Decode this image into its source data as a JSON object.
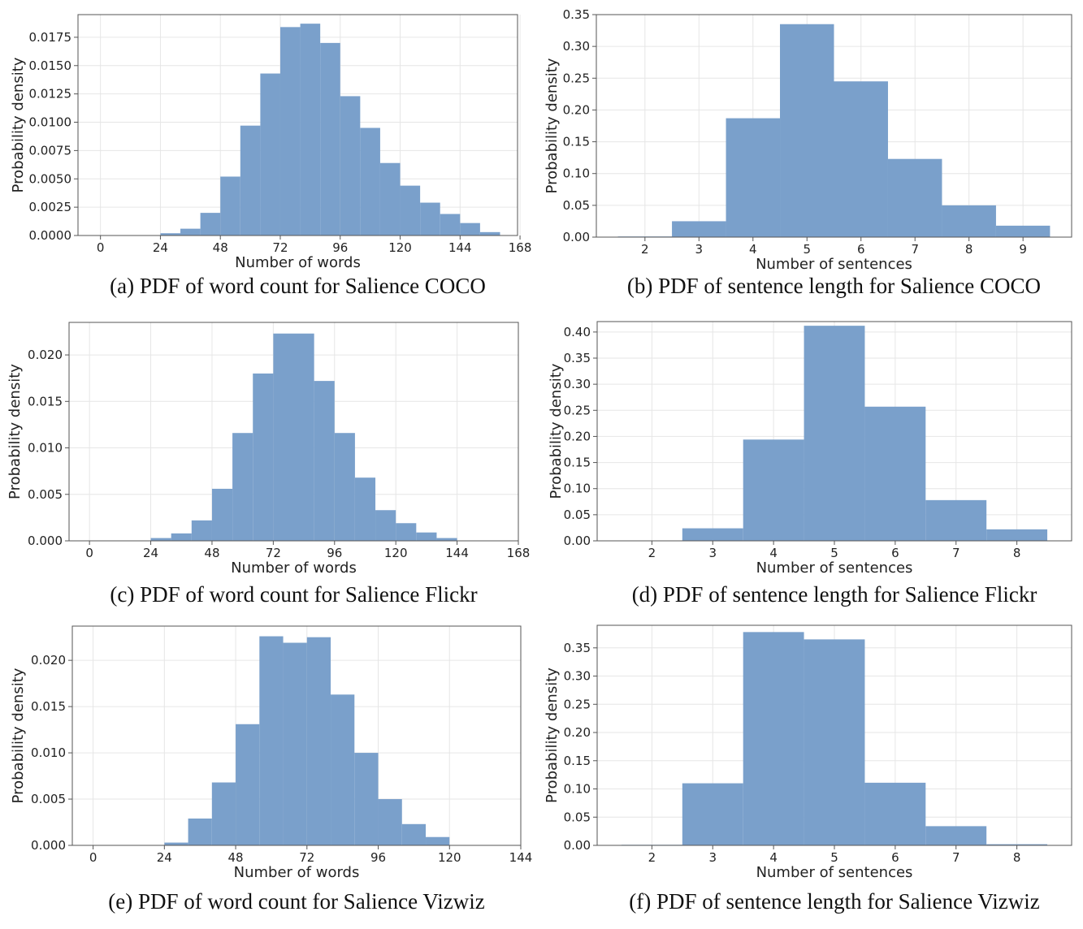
{
  "chart_data": [
    {
      "id": "a",
      "type": "bar",
      "caption": "(a) PDF of word count for Salience COCO",
      "xlabel": "Number of words",
      "ylabel": "Probability density",
      "xlim": [
        -9,
        167
      ],
      "ylim": [
        0,
        0.0195
      ],
      "xticks": [
        0,
        24,
        48,
        72,
        96,
        120,
        144,
        168
      ],
      "yticks": [
        0,
        0.0025,
        0.005,
        0.0075,
        0.01,
        0.0125,
        0.015,
        0.0175
      ],
      "ytick_labels": [
        "0.0000",
        "0.0025",
        "0.0050",
        "0.0075",
        "0.0100",
        "0.0125",
        "0.0150",
        "0.0175"
      ],
      "grid": true,
      "bin_edges": [
        24,
        32,
        40,
        48,
        56,
        64,
        72,
        80,
        88,
        96,
        104,
        112,
        120,
        128,
        136,
        144,
        152,
        160
      ],
      "values": [
        0.0002,
        0.0006,
        0.002,
        0.0052,
        0.0097,
        0.0143,
        0.0184,
        0.0187,
        0.017,
        0.0123,
        0.0095,
        0.0064,
        0.0044,
        0.0029,
        0.0019,
        0.0011,
        0.0003
      ]
    },
    {
      "id": "b",
      "type": "bar",
      "caption": "(b) PDF of sentence length for Salience COCO",
      "xlabel": "Number of sentences",
      "ylabel": "Probability density",
      "xlim": [
        1.1,
        9.9
      ],
      "ylim": [
        0,
        0.35
      ],
      "xticks": [
        2,
        3,
        4,
        5,
        6,
        7,
        8,
        9
      ],
      "yticks": [
        0,
        0.05,
        0.1,
        0.15,
        0.2,
        0.25,
        0.3,
        0.35
      ],
      "ytick_labels": [
        "0.00",
        "0.05",
        "0.10",
        "0.15",
        "0.20",
        "0.25",
        "0.30",
        "0.35"
      ],
      "grid": true,
      "bin_edges": [
        1.5,
        2.5,
        3.5,
        4.5,
        5.5,
        6.5,
        7.5,
        8.5,
        9.5
      ],
      "values": [
        0.001,
        0.025,
        0.187,
        0.335,
        0.245,
        0.123,
        0.05,
        0.018
      ]
    },
    {
      "id": "c",
      "type": "bar",
      "caption": "(c) PDF of word count for Salience Flickr",
      "xlabel": "Number of words",
      "ylabel": "Probability density",
      "xlim": [
        -8,
        168
      ],
      "ylim": [
        0,
        0.0235
      ],
      "xticks": [
        0,
        24,
        48,
        72,
        96,
        120,
        144,
        168
      ],
      "yticks": [
        0,
        0.005,
        0.01,
        0.015,
        0.02
      ],
      "ytick_labels": [
        "0.000",
        "0.005",
        "0.010",
        "0.015",
        "0.020"
      ],
      "grid": true,
      "bin_edges": [
        24,
        32,
        40,
        48,
        56,
        64,
        72,
        80,
        88,
        96,
        104,
        112,
        120,
        128,
        136,
        144
      ],
      "values": [
        0.0003,
        0.0008,
        0.0022,
        0.0056,
        0.0116,
        0.018,
        0.0223,
        0.0223,
        0.0172,
        0.0116,
        0.0068,
        0.0033,
        0.0019,
        0.0009,
        0.0003
      ]
    },
    {
      "id": "d",
      "type": "bar",
      "caption": "(d) PDF of sentence length for Salience Flickr",
      "xlabel": "Number of sentences",
      "ylabel": "Probability density",
      "xlim": [
        1.1,
        8.9
      ],
      "ylim": [
        0,
        0.42
      ],
      "xticks": [
        2,
        3,
        4,
        5,
        6,
        7,
        8
      ],
      "yticks": [
        0,
        0.05,
        0.1,
        0.15,
        0.2,
        0.25,
        0.3,
        0.35,
        0.4
      ],
      "ytick_labels": [
        "0.00",
        "0.05",
        "0.10",
        "0.15",
        "0.20",
        "0.25",
        "0.30",
        "0.35",
        "0.40"
      ],
      "grid": true,
      "bin_edges": [
        1.5,
        2.5,
        3.5,
        4.5,
        5.5,
        6.5,
        7.5,
        8.5
      ],
      "values": [
        0,
        0.024,
        0.194,
        0.412,
        0.257,
        0.078,
        0.022
      ]
    },
    {
      "id": "e",
      "type": "bar",
      "caption": "(e) PDF of word count for Salience Vizwiz",
      "xlabel": "Number of words",
      "ylabel": "Probability density",
      "xlim": [
        -7,
        144
      ],
      "ylim": [
        0,
        0.0237
      ],
      "xticks": [
        0,
        24,
        48,
        72,
        96,
        120,
        144
      ],
      "yticks": [
        0,
        0.005,
        0.01,
        0.015,
        0.02
      ],
      "ytick_labels": [
        "0.000",
        "0.005",
        "0.010",
        "0.015",
        "0.020"
      ],
      "grid": true,
      "bin_edges": [
        24,
        32,
        40,
        48,
        56,
        64,
        72,
        80,
        88,
        96,
        104,
        112,
        120
      ],
      "values": [
        0.0003,
        0.0029,
        0.0068,
        0.0131,
        0.0226,
        0.0219,
        0.0225,
        0.0163,
        0.01,
        0.005,
        0.0023,
        0.0009
      ]
    },
    {
      "id": "f",
      "type": "bar",
      "caption": "(f) PDF of sentence length for Salience Vizwiz",
      "xlabel": "Number of sentences",
      "ylabel": "Probability density",
      "xlim": [
        1.1,
        8.9
      ],
      "ylim": [
        0,
        0.39
      ],
      "xticks": [
        2,
        3,
        4,
        5,
        6,
        7,
        8
      ],
      "yticks": [
        0,
        0.05,
        0.1,
        0.15,
        0.2,
        0.25,
        0.3,
        0.35
      ],
      "ytick_labels": [
        "0.00",
        "0.05",
        "0.10",
        "0.15",
        "0.20",
        "0.25",
        "0.30",
        "0.35"
      ],
      "grid": true,
      "bin_edges": [
        1.5,
        2.5,
        3.5,
        4.5,
        5.5,
        6.5,
        7.5,
        8.5
      ],
      "values": [
        0.001,
        0.11,
        0.378,
        0.365,
        0.111,
        0.034,
        0.002
      ]
    }
  ]
}
